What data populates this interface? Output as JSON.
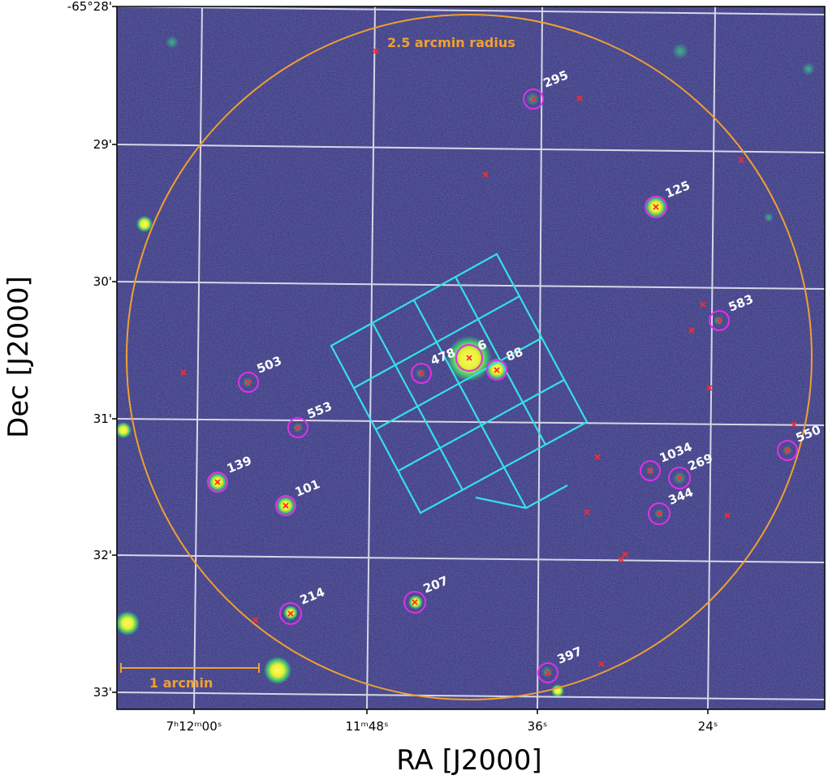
{
  "colors": {
    "background": "#3d3a7f",
    "grid": "#e6e6f0",
    "aperture": "#f0a030",
    "marker_circle": "#e030e8",
    "marker_cross": "#ff2a2a",
    "ifu_grid": "#35e0e8",
    "star": "#f7f23a"
  },
  "axes": {
    "xlabel": "RA  [J2000]",
    "ylabel": "Dec  [J2000]",
    "ra_ticks": [
      "7ʰ12ᵐ00ˢ",
      "11ᵐ48ˢ",
      "36ˢ",
      "24ˢ"
    ],
    "dec_ticks": [
      "-65°28'",
      "29'",
      "30'",
      "31'",
      "32'",
      "33'"
    ]
  },
  "annotations": {
    "aperture_label": "2.5 arcmin radius",
    "scalebar_label": "1 arcmin"
  },
  "sources": [
    {
      "id": "295"
    },
    {
      "id": "125"
    },
    {
      "id": "583"
    },
    {
      "id": "503"
    },
    {
      "id": "478"
    },
    {
      "id": "6"
    },
    {
      "id": "88"
    },
    {
      "id": "553"
    },
    {
      "id": "139"
    },
    {
      "id": "101"
    },
    {
      "id": "1034"
    },
    {
      "id": "269"
    },
    {
      "id": "344"
    },
    {
      "id": "550"
    },
    {
      "id": "214"
    },
    {
      "id": "207"
    },
    {
      "id": "397"
    }
  ]
}
